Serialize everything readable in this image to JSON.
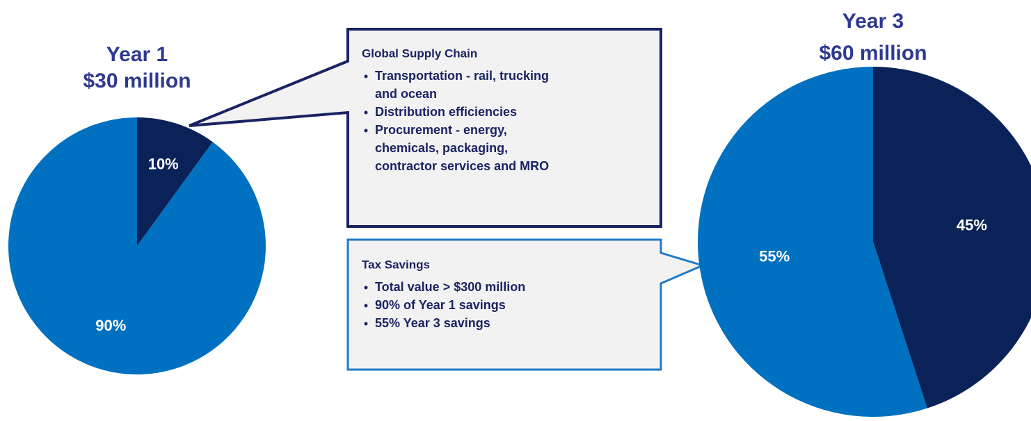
{
  "chart_data": [
    {
      "type": "pie",
      "title": "Year 1",
      "subtitle": "$30 million",
      "values": [
        10,
        90
      ],
      "value_labels": [
        "10%",
        "90%"
      ],
      "colors": [
        "#0b2258",
        "#0070c0"
      ]
    },
    {
      "type": "pie",
      "title": "Year 3",
      "subtitle": "$60 million",
      "values": [
        45,
        55
      ],
      "value_labels": [
        "45%",
        "55%"
      ],
      "colors": [
        "#0b2258",
        "#0070c0"
      ]
    }
  ],
  "callouts": [
    {
      "heading": "Global Supply Chain",
      "items": [
        [
          "Transportation - rail, trucking",
          "and ocean"
        ],
        [
          "Distribution efficiencies"
        ],
        [
          "Procurement - energy,",
          "chemicals, packaging,",
          "contractor services and MRO"
        ]
      ]
    },
    {
      "heading": "Tax Savings",
      "items": [
        [
          "Total value > $300 million"
        ],
        [
          "90% of Year 1 savings"
        ],
        [
          "55% Year 3 savings"
        ]
      ]
    }
  ]
}
